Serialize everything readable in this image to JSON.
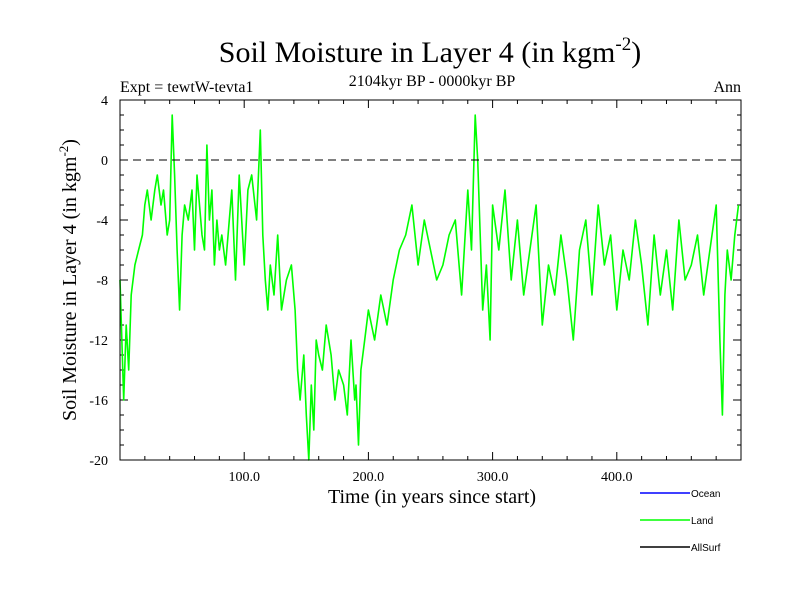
{
  "colors": {
    "land": "#00ff00",
    "ocean": "#0000ff",
    "allsurf": "#000000",
    "axis": "#000000",
    "zero_line": "#000000"
  },
  "chart_data": {
    "type": "line",
    "title_main": "Soil Moisture in Layer 4 (in kgm",
    "title_exp": "-2",
    "title_close": ")",
    "subtitle": "2104kyr BP - 0000kyr BP",
    "experiment": "Expt = tewtW-tevta1",
    "season": "Ann",
    "xlabel": "Time (in years since start)",
    "ylabel_main": "Soil Moisture in Layer 4 (in kgm",
    "ylabel_exp": "-2",
    "ylabel_close": ")",
    "xlim": [
      0,
      500
    ],
    "ylim": [
      -20,
      4
    ],
    "x_ticks": [
      100,
      200,
      300,
      400
    ],
    "x_tick_labels": [
      "100.0",
      "200.0",
      "300.0",
      "400.0"
    ],
    "y_ticks": [
      4,
      0,
      -4,
      -8,
      -12,
      -16,
      -20
    ],
    "y_tick_labels": [
      "4",
      "0",
      "-4",
      "-8",
      "-12",
      "-16",
      "-20"
    ],
    "zero_line": 0,
    "legend": [
      {
        "name": "Ocean",
        "color": "#0000ff"
      },
      {
        "name": "Land",
        "color": "#00ff00"
      },
      {
        "name": "AllSurf",
        "color": "#000000"
      }
    ],
    "series": [
      {
        "name": "Land",
        "color": "#00ff00",
        "x": [
          0,
          3,
          5,
          7,
          9,
          12,
          15,
          18,
          20,
          22,
          25,
          28,
          30,
          33,
          35,
          38,
          40,
          42,
          44,
          46,
          48,
          50,
          52,
          55,
          58,
          60,
          62,
          64,
          66,
          68,
          70,
          72,
          74,
          76,
          78,
          80,
          82,
          85,
          88,
          90,
          93,
          96,
          100,
          103,
          106,
          110,
          113,
          115,
          117,
          119,
          121,
          124,
          127,
          130,
          134,
          138,
          141,
          143,
          145,
          148,
          150,
          152,
          154,
          156,
          158,
          160,
          163,
          166,
          170,
          173,
          176,
          180,
          183,
          186,
          189,
          190,
          192,
          194,
          197,
          200,
          205,
          210,
          215,
          220,
          225,
          230,
          235,
          240,
          245,
          250,
          255,
          260,
          265,
          270,
          275,
          280,
          283,
          286,
          288,
          290,
          292,
          295,
          298,
          300,
          305,
          310,
          315,
          320,
          325,
          330,
          335,
          340,
          345,
          350,
          355,
          360,
          365,
          370,
          375,
          380,
          385,
          390,
          395,
          400,
          405,
          410,
          415,
          420,
          425,
          430,
          435,
          440,
          445,
          450,
          455,
          460,
          465,
          470,
          475,
          480,
          483,
          485,
          487,
          489,
          492,
          495,
          498
        ],
        "values": [
          -8,
          -16,
          -11,
          -14,
          -9,
          -7,
          -6,
          -5,
          -3,
          -2,
          -4,
          -2,
          -1,
          -3,
          -2,
          -5,
          -4,
          3,
          -1,
          -6,
          -10,
          -5,
          -3,
          -4,
          -2,
          -6,
          -1,
          -3,
          -5,
          -6,
          1,
          -4,
          -2,
          -7,
          -4,
          -6,
          -5,
          -7,
          -4,
          -2,
          -8,
          -1,
          -7,
          -2,
          -1,
          -4,
          2,
          -5,
          -8,
          -10,
          -7,
          -9,
          -5,
          -10,
          -8,
          -7,
          -10,
          -14,
          -16,
          -13,
          -17,
          -20,
          -15,
          -18,
          -12,
          -13,
          -14,
          -11,
          -13,
          -16,
          -14,
          -15,
          -17,
          -12,
          -16,
          -15,
          -19,
          -14,
          -12,
          -10,
          -12,
          -9,
          -11,
          -8,
          -6,
          -5,
          -3,
          -7,
          -4,
          -6,
          -8,
          -7,
          -5,
          -4,
          -9,
          -2,
          -6,
          3,
          0,
          -5,
          -10,
          -7,
          -12,
          -3,
          -6,
          -2,
          -8,
          -4,
          -9,
          -6,
          -3,
          -11,
          -7,
          -9,
          -5,
          -8,
          -12,
          -6,
          -4,
          -9,
          -3,
          -7,
          -5,
          -10,
          -6,
          -8,
          -4,
          -7,
          -11,
          -5,
          -9,
          -6,
          -10,
          -4,
          -8,
          -7,
          -5,
          -9,
          -6,
          -3,
          -12,
          -17,
          -9,
          -6,
          -8,
          -5,
          -3
        ]
      }
    ]
  }
}
